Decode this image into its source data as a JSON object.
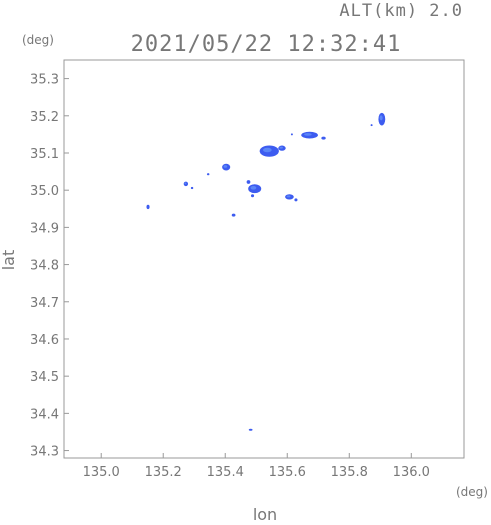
{
  "chart_data": {
    "type": "scatter",
    "title": "2021/05/22 12:32:41",
    "subtitle": "ALT(km) 2.0",
    "xlabel": "lon",
    "ylabel": "lat",
    "x_unit": "(deg)",
    "y_unit": "(deg)",
    "xlim": [
      134.88,
      136.17
    ],
    "ylim": [
      34.28,
      35.35
    ],
    "x_ticks": [
      "135.0",
      "135.2",
      "135.4",
      "135.6",
      "135.8",
      "136.0"
    ],
    "y_ticks": [
      "34.3",
      "34.4",
      "34.5",
      "34.6",
      "34.7",
      "34.8",
      "34.9",
      "35.0",
      "35.1",
      "35.2",
      "35.3"
    ],
    "grid": false,
    "colors": {
      "echo": "#3d5cf0",
      "echo_light": "#5b86f7",
      "frame": "#999999"
    },
    "echoes": [
      {
        "lon": 135.151,
        "lat": 34.955,
        "w": 0.01,
        "h": 0.012
      },
      {
        "lon": 135.273,
        "lat": 35.017,
        "w": 0.014,
        "h": 0.012
      },
      {
        "lon": 135.293,
        "lat": 35.006,
        "w": 0.008,
        "h": 0.006
      },
      {
        "lon": 135.345,
        "lat": 35.043,
        "w": 0.008,
        "h": 0.006
      },
      {
        "lon": 135.403,
        "lat": 35.062,
        "w": 0.026,
        "h": 0.018
      },
      {
        "lon": 135.495,
        "lat": 35.004,
        "w": 0.042,
        "h": 0.024
      },
      {
        "lon": 135.475,
        "lat": 35.022,
        "w": 0.012,
        "h": 0.01
      },
      {
        "lon": 135.488,
        "lat": 34.985,
        "w": 0.01,
        "h": 0.008
      },
      {
        "lon": 135.427,
        "lat": 34.933,
        "w": 0.012,
        "h": 0.008
      },
      {
        "lon": 135.542,
        "lat": 35.105,
        "w": 0.062,
        "h": 0.03
      },
      {
        "lon": 135.583,
        "lat": 35.113,
        "w": 0.024,
        "h": 0.014
      },
      {
        "lon": 135.607,
        "lat": 34.982,
        "w": 0.028,
        "h": 0.014
      },
      {
        "lon": 135.628,
        "lat": 34.974,
        "w": 0.01,
        "h": 0.008
      },
      {
        "lon": 135.672,
        "lat": 35.148,
        "w": 0.054,
        "h": 0.018
      },
      {
        "lon": 135.717,
        "lat": 35.14,
        "w": 0.014,
        "h": 0.008
      },
      {
        "lon": 135.905,
        "lat": 35.191,
        "w": 0.022,
        "h": 0.034
      },
      {
        "lon": 135.872,
        "lat": 35.175,
        "w": 0.004,
        "h": 0.004
      },
      {
        "lon": 135.615,
        "lat": 35.15,
        "w": 0.004,
        "h": 0.004
      },
      {
        "lon": 135.482,
        "lat": 34.356,
        "w": 0.012,
        "h": 0.004
      }
    ]
  }
}
